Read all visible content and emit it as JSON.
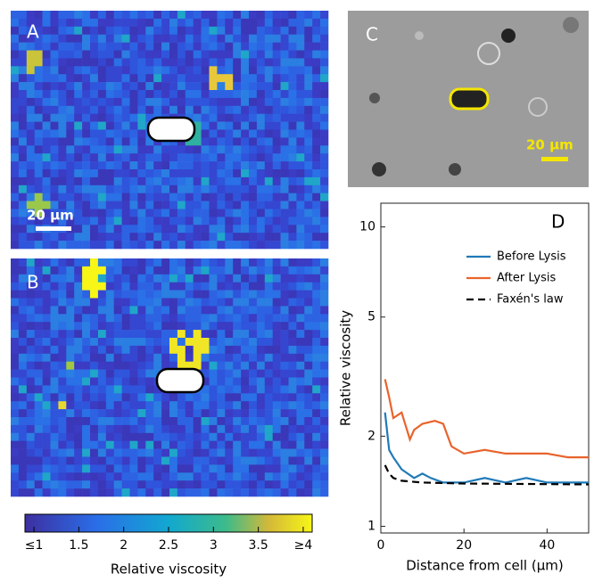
{
  "panels": {
    "a": {
      "label": "A",
      "scale": "20 μm"
    },
    "b": {
      "label": "B"
    },
    "c": {
      "label": "C",
      "scale": "20 μm"
    }
  },
  "colorbar": {
    "ticks": [
      {
        "value": 1,
        "label": "≤1"
      },
      1.5,
      2,
      2.5,
      3,
      3.5,
      {
        "value": 4,
        "label": "≥4"
      }
    ],
    "lim": [
      0.9,
      4.1
    ],
    "title": "Relative viscosity"
  },
  "chart_data": {
    "type": "line",
    "label": "D",
    "xlabel": "Distance from cell (μm)",
    "ylabel": "Relative viscosity",
    "log_y": true,
    "legend": "upper right",
    "xlim": [
      0,
      50
    ],
    "xticks": [
      0,
      20,
      40
    ],
    "ylim": [
      0.95,
      12
    ],
    "yticks": [
      1,
      2,
      5,
      10
    ],
    "series": [
      {
        "name": "Before Lysis",
        "color": "#1f7ab8",
        "x": [
          1,
          2,
          3,
          5,
          8,
          10,
          12,
          15,
          20,
          25,
          30,
          35,
          40,
          45,
          50
        ],
        "values": [
          2.4,
          1.8,
          1.7,
          1.55,
          1.45,
          1.5,
          1.45,
          1.4,
          1.4,
          1.45,
          1.4,
          1.45,
          1.4,
          1.4,
          1.4
        ]
      },
      {
        "name": "After Lysis",
        "color": "#e8642c",
        "x": [
          1,
          2,
          3,
          5,
          7,
          8,
          10,
          13,
          15,
          17,
          20,
          25,
          30,
          35,
          40,
          45,
          50
        ],
        "values": [
          3.1,
          2.7,
          2.3,
          2.4,
          1.95,
          2.1,
          2.2,
          2.25,
          2.2,
          1.85,
          1.75,
          1.8,
          1.75,
          1.75,
          1.75,
          1.7,
          1.7
        ]
      },
      {
        "name": "Faxén's law",
        "color": "#000000",
        "dash": true,
        "x": [
          1,
          2,
          3,
          5,
          10,
          20,
          50
        ],
        "values": [
          1.6,
          1.5,
          1.45,
          1.42,
          1.4,
          1.39,
          1.38
        ]
      }
    ]
  }
}
